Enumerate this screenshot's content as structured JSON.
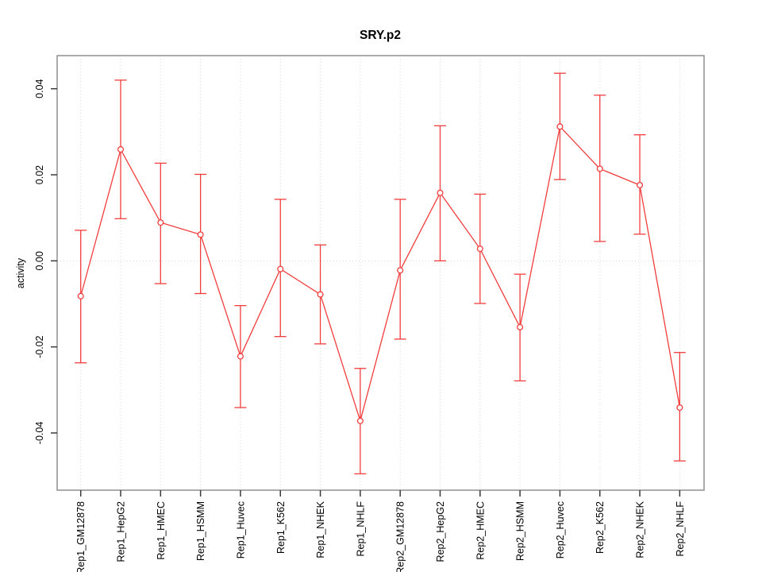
{
  "chart_data": {
    "type": "line",
    "title": "SRY.p2",
    "xlabel": "",
    "ylabel": "activity",
    "ylim": [
      -0.0533,
      0.0477
    ],
    "yticks": [
      -0.04,
      -0.02,
      0.0,
      0.02,
      0.04
    ],
    "ytick_labels": [
      "-0.04",
      "-0.02",
      "0.00",
      "0.02",
      "0.04"
    ],
    "grid": "dotted vertical line at every category; dotted horizontal line at y=0",
    "legend": "none",
    "point_style": "open-circle",
    "categories": [
      "Rep1_GM12878",
      "Rep1_HepG2",
      "Rep1_HMEC",
      "Rep1_HSMM",
      "Rep1_Huvec",
      "Rep1_K562",
      "Rep1_NHEK",
      "Rep1_NHLF",
      "Rep2_GM12878",
      "Rep2_HepG2",
      "Rep2_HMEC",
      "Rep2_HSMM",
      "Rep2_Huvec",
      "Rep2_K562",
      "Rep2_NHEK",
      "Rep2_NHLF"
    ],
    "series": [
      {
        "name": "activity",
        "values": [
          -0.0082,
          0.0259,
          0.0089,
          0.0061,
          -0.0222,
          -0.0019,
          -0.0078,
          -0.0372,
          -0.0022,
          0.0158,
          0.0028,
          -0.0154,
          0.0312,
          0.0214,
          0.0176,
          -0.0341
        ],
        "error_low": [
          -0.0237,
          0.0098,
          -0.0053,
          -0.0076,
          -0.0341,
          -0.0176,
          -0.0193,
          -0.0495,
          -0.0182,
          0.0,
          -0.0099,
          -0.0279,
          0.0189,
          0.0045,
          0.0062,
          -0.0465
        ],
        "error_high": [
          0.0071,
          0.042,
          0.0227,
          0.0201,
          -0.0104,
          0.0143,
          0.0037,
          -0.025,
          0.0143,
          0.0314,
          0.0155,
          -0.0031,
          0.0436,
          0.0385,
          0.0293,
          -0.0213
        ]
      }
    ],
    "colors": {
      "line": "#f23d3d",
      "point_fill": "#ffffff",
      "grid": "#d6d6d6",
      "box": "#8f8f8f",
      "tick": "#3a3a3a",
      "text": "#000000"
    }
  }
}
